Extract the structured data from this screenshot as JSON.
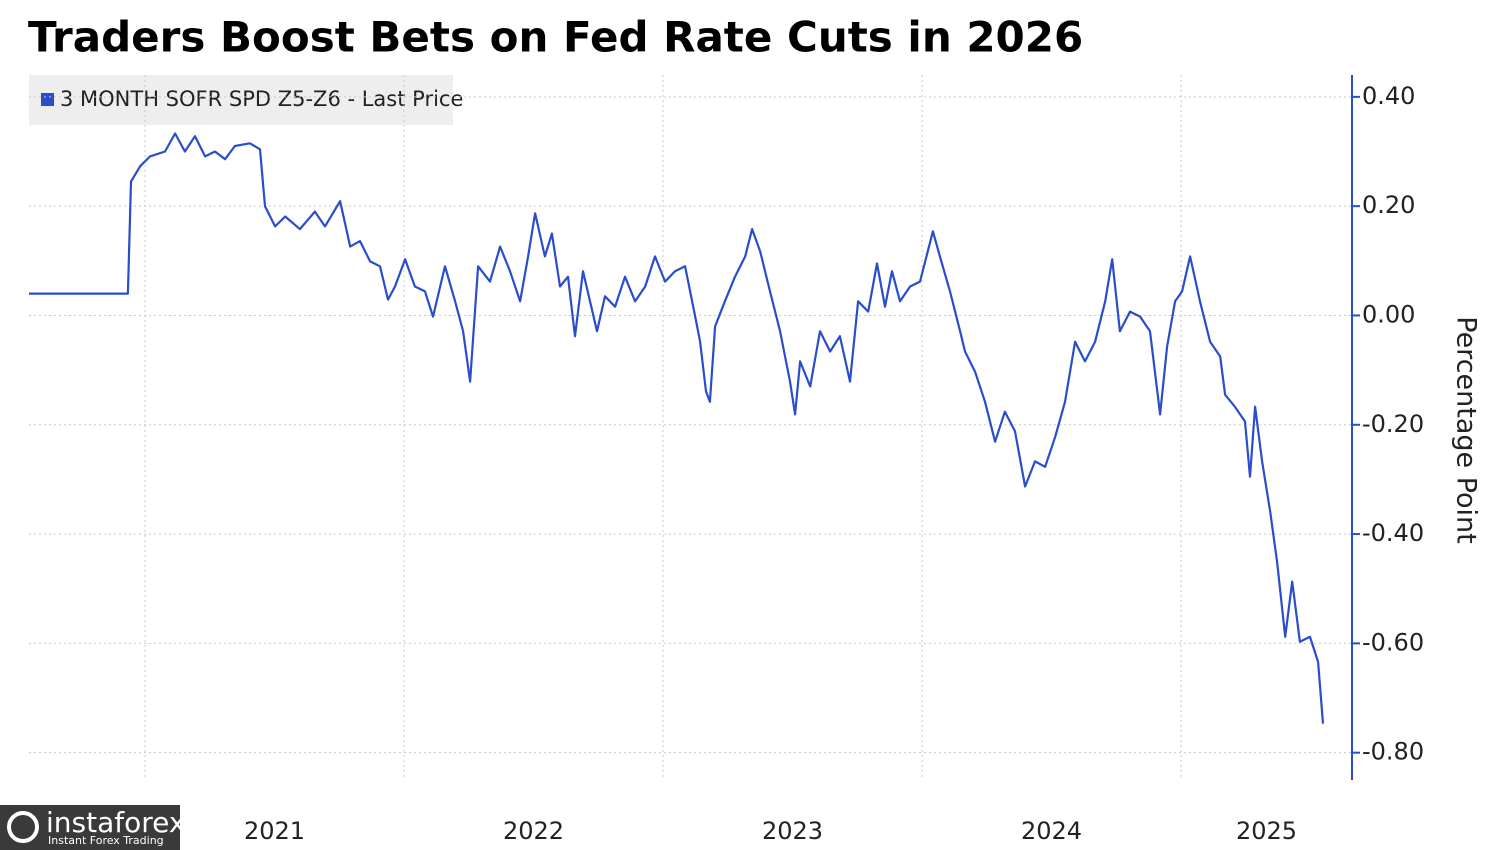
{
  "chart_data": {
    "type": "line",
    "title": "Traders Boost Bets on Fed Rate Cuts in 2026",
    "y_axis_label": "Percentage Point",
    "watermark": "instaforex",
    "watermark_subtitle": "Instant Forex Trading",
    "legend": "top-left",
    "grid": true,
    "xlim": [
      2020.552,
      2025.66
    ],
    "xticks": [
      {
        "value": 2021,
        "label": "2021"
      },
      {
        "value": 2022,
        "label": "2022"
      },
      {
        "value": 2023,
        "label": "2023"
      },
      {
        "value": 2024,
        "label": "2024"
      },
      {
        "value": 2025,
        "label": "2025"
      }
    ],
    "ylim": [
      -0.85,
      0.44
    ],
    "yticks": [
      {
        "value": 0.4,
        "label": "0.40"
      },
      {
        "value": 0.2,
        "label": "0.20"
      },
      {
        "value": 0,
        "label": "0.00"
      },
      {
        "value": -0.2,
        "label": "-0.20"
      },
      {
        "value": -0.4,
        "label": "-0.40"
      },
      {
        "value": -0.6,
        "label": "-0.60"
      },
      {
        "value": -0.8,
        "label": "-0.80"
      }
    ],
    "series": [
      {
        "name": "3 MONTH SOFR SPD Z5-Z6 - Last Price",
        "color": "#2a4dcc",
        "x": [
          2020.552,
          2020.934,
          2020.946,
          2020.981,
          2021.019,
          2021.077,
          2021.116,
          2021.154,
          2021.193,
          2021.232,
          2021.27,
          2021.309,
          2021.347,
          2021.405,
          2021.444,
          2021.463,
          2021.502,
          2021.541,
          2021.598,
          2021.656,
          2021.695,
          2021.753,
          2021.792,
          2021.83,
          2021.869,
          2021.907,
          2021.938,
          2021.965,
          2022.004,
          2022.042,
          2022.081,
          2022.112,
          2022.158,
          2022.197,
          2022.228,
          2022.255,
          2022.286,
          2022.332,
          2022.371,
          2022.409,
          2022.448,
          2022.479,
          2022.506,
          2022.544,
          2022.571,
          2022.602,
          2022.633,
          2022.66,
          2022.691,
          2022.718,
          2022.745,
          2022.776,
          2022.815,
          2022.853,
          2022.892,
          2022.931,
          2022.969,
          2023.008,
          2023.046,
          2023.085,
          2023.124,
          2023.143,
          2023.166,
          2023.181,
          2023.201,
          2023.239,
          2023.278,
          2023.317,
          2023.344,
          2023.375,
          2023.413,
          2023.452,
          2023.49,
          2023.51,
          2023.529,
          2023.568,
          2023.606,
          2023.645,
          2023.683,
          2023.722,
          2023.753,
          2023.792,
          2023.826,
          2023.857,
          2023.884,
          2023.915,
          2023.954,
          2023.992,
          2024.042,
          2024.069,
          2024.108,
          2024.147,
          2024.166,
          2024.205,
          2024.243,
          2024.282,
          2024.32,
          2024.359,
          2024.398,
          2024.436,
          2024.475,
          2024.514,
          2024.552,
          2024.591,
          2024.629,
          2024.668,
          2024.707,
          2024.734,
          2024.764,
          2024.803,
          2024.842,
          2024.88,
          2024.919,
          2024.946,
          2024.977,
          2025.004,
          2025.035,
          2025.073,
          2025.112,
          2025.151,
          2025.17,
          2025.208,
          2025.247,
          2025.266,
          2025.286,
          2025.313,
          2025.344,
          2025.371,
          2025.402,
          2025.429,
          2025.459,
          2025.498,
          2025.529,
          2025.548
        ],
        "values": [
          0.04,
          0.04,
          0.245,
          0.273,
          0.291,
          0.3,
          0.333,
          0.3,
          0.328,
          0.291,
          0.3,
          0.286,
          0.31,
          0.315,
          0.304,
          0.2,
          0.163,
          0.181,
          0.158,
          0.19,
          0.163,
          0.209,
          0.126,
          0.136,
          0.099,
          0.09,
          0.029,
          0.053,
          0.103,
          0.053,
          0.044,
          -0.002,
          0.09,
          0.026,
          -0.029,
          -0.121,
          0.09,
          0.062,
          0.126,
          0.081,
          0.026,
          0.108,
          0.187,
          0.108,
          0.15,
          0.053,
          0.071,
          -0.038,
          0.081,
          0.026,
          -0.029,
          0.035,
          0.016,
          0.071,
          0.026,
          0.053,
          0.108,
          0.062,
          0.081,
          0.09,
          -0.002,
          -0.048,
          -0.139,
          -0.158,
          -0.02,
          0.026,
          0.071,
          0.108,
          0.158,
          0.117,
          0.044,
          -0.029,
          -0.121,
          -0.181,
          -0.084,
          -0.13,
          -0.029,
          -0.066,
          -0.038,
          -0.121,
          0.026,
          0.007,
          0.095,
          0.016,
          0.081,
          0.026,
          0.053,
          0.062,
          0.154,
          0.108,
          0.044,
          -0.029,
          -0.066,
          -0.103,
          -0.158,
          -0.231,
          -0.176,
          -0.212,
          -0.313,
          -0.267,
          -0.277,
          -0.222,
          -0.158,
          -0.048,
          -0.084,
          -0.048,
          0.026,
          0.103,
          -0.029,
          0.007,
          -0.002,
          -0.029,
          -0.181,
          -0.057,
          0.026,
          0.044,
          0.108,
          0.026,
          -0.048,
          -0.075,
          -0.145,
          -0.167,
          -0.194,
          -0.295,
          -0.167,
          -0.267,
          -0.359,
          -0.451,
          -0.588,
          -0.487,
          -0.597,
          -0.588,
          -0.634,
          -0.747
        ]
      }
    ]
  }
}
